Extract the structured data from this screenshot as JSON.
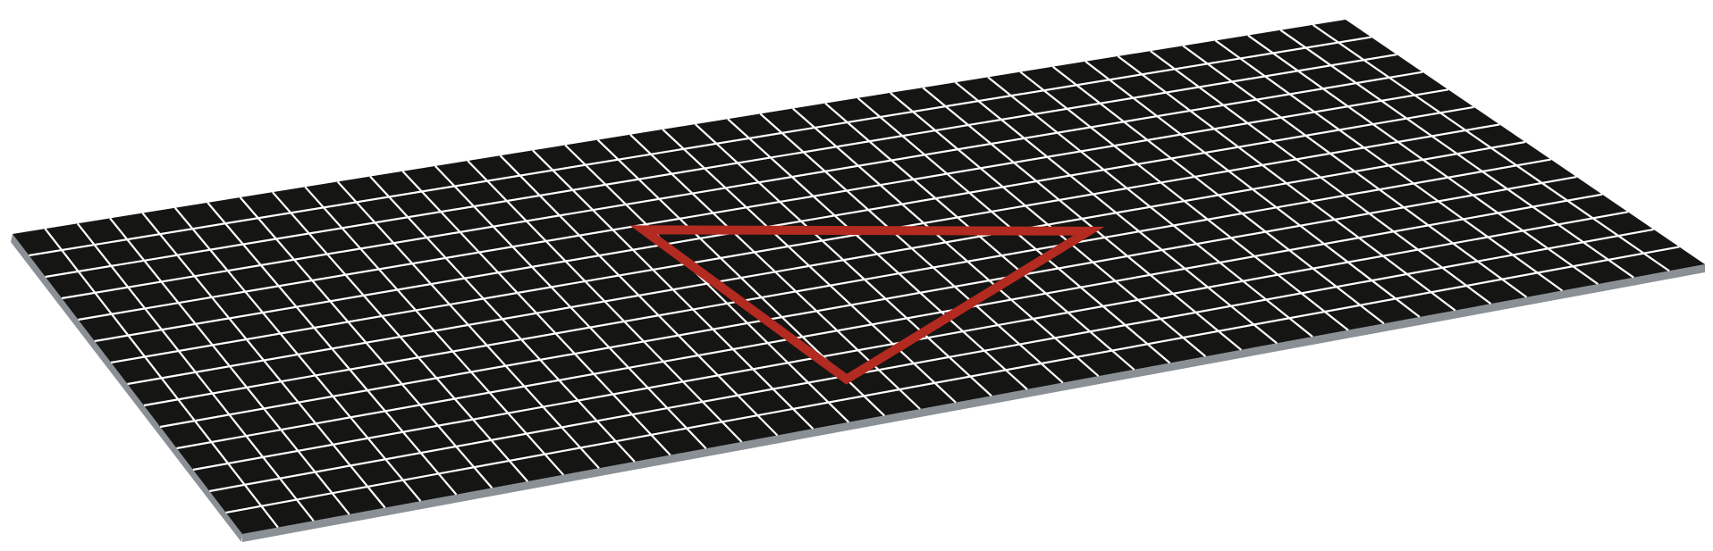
{
  "board": {
    "columns": 41,
    "rows": 14,
    "surface_color": "#151614",
    "grid_line_color": "#ffffff",
    "edge_color": "#8a9095"
  },
  "triangle": {
    "stroke_color": "#b22a20",
    "vertices_grid": [
      [
        16.78,
        4.22
      ],
      [
        27.8,
        7.6
      ],
      [
        18.0,
        12.15
      ]
    ]
  }
}
